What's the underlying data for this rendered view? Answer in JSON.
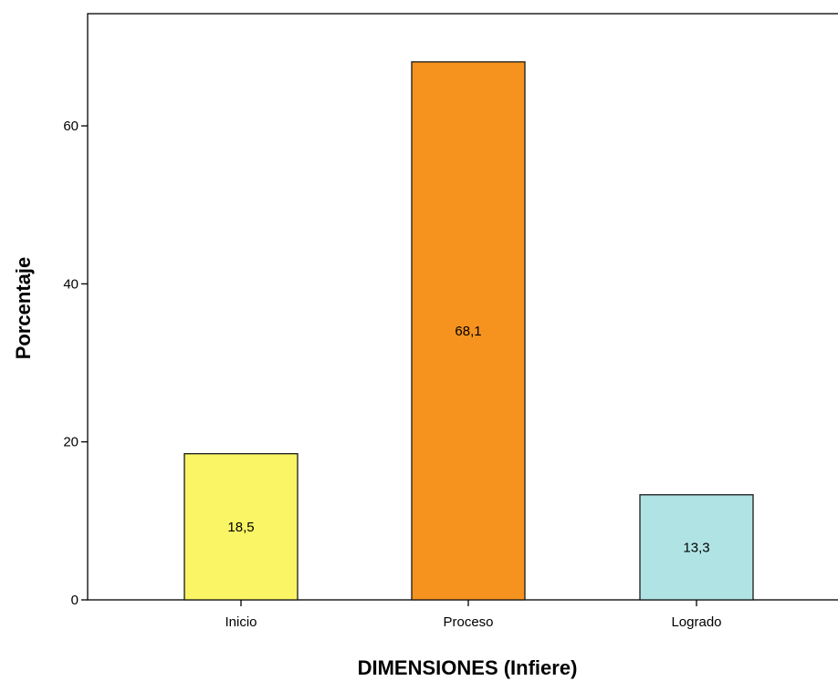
{
  "chart_data": {
    "type": "bar",
    "title": "",
    "xlabel": "DIMENSIONES (Infiere)",
    "ylabel": "Porcentaje",
    "categories": [
      "Inicio",
      "Proceso",
      "Logrado"
    ],
    "values": [
      18.5,
      68.1,
      13.3
    ],
    "data_labels": [
      "18,5",
      "68,1",
      "13,3"
    ],
    "colors": [
      "#FAF565",
      "#F6931E",
      "#B0E4E4"
    ],
    "ylim": [
      0,
      74.2
    ],
    "yticks": [
      0,
      20,
      40,
      60
    ],
    "grid": false,
    "legend": "none"
  }
}
